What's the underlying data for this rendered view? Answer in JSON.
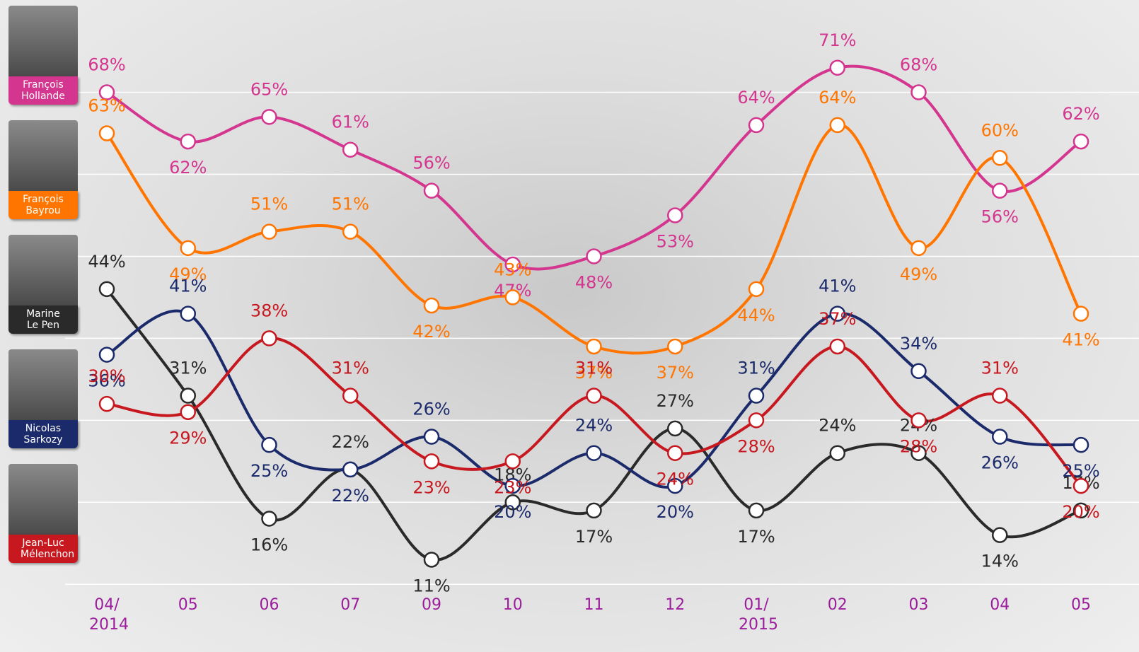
{
  "chart_data": {
    "type": "line",
    "categories": [
      "04/ 2014",
      "05",
      "06",
      "07",
      "09",
      "10",
      "11",
      "12",
      "01/ 2015",
      "02",
      "03",
      "04",
      "05"
    ],
    "ylim": [
      0,
      79
    ],
    "grid_lines": [
      8,
      18,
      28,
      38,
      48,
      58,
      68
    ],
    "grid": true,
    "series": [
      {
        "name": "François Hollande",
        "color": "#d4358f",
        "values": [
          68,
          62,
          65,
          61,
          56,
          47,
          48,
          53,
          64,
          71,
          68,
          56,
          62
        ],
        "value_labels": [
          "68%",
          "62%",
          "65%",
          "61%",
          "56%",
          "47%",
          "48%",
          "53%",
          "64%",
          "71%",
          "68%",
          "56%",
          "62%"
        ]
      },
      {
        "name": "François Bayrou",
        "color": "#ff7500",
        "values": [
          63,
          49,
          51,
          51,
          42,
          43,
          37,
          37,
          44,
          64,
          49,
          60,
          41
        ],
        "value_labels": [
          "63%",
          "49%",
          "51%",
          "51%",
          "42%",
          "43%",
          "37%",
          "37%",
          "44%",
          "64%",
          "49%",
          "60%",
          "41%"
        ]
      },
      {
        "name": "Marine Le Pen",
        "color": "#2a2a2a",
        "values": [
          44,
          31,
          16,
          22,
          11,
          18,
          17,
          27,
          17,
          24,
          24,
          14,
          17
        ],
        "value_labels": [
          "44%",
          "31%",
          "16%",
          "22%",
          "11%",
          "18%",
          "17%",
          "27%",
          "17%",
          "24%",
          "24%",
          "14%",
          "17%"
        ]
      },
      {
        "name": "Nicolas Sarkozy",
        "color": "#1b2a6b",
        "values": [
          36,
          41,
          25,
          22,
          26,
          20,
          24,
          20,
          31,
          41,
          34,
          26,
          25
        ],
        "value_labels": [
          "36%",
          "41%",
          "25%",
          "22%",
          "26%",
          "20%",
          "24%",
          "20%",
          "31%",
          "41%",
          "34%",
          "26%",
          "25%"
        ]
      },
      {
        "name": "Jean-Luc Mélenchon",
        "color": "#c8181f",
        "values": [
          30,
          29,
          38,
          31,
          23,
          23,
          31,
          24,
          28,
          37,
          28,
          31,
          20
        ],
        "value_labels": [
          "30%",
          "29%",
          "38%",
          "31%",
          "23%",
          "23%",
          "31%",
          "24%",
          "28%",
          "37%",
          "28%",
          "31%",
          "20%"
        ]
      }
    ]
  }
}
